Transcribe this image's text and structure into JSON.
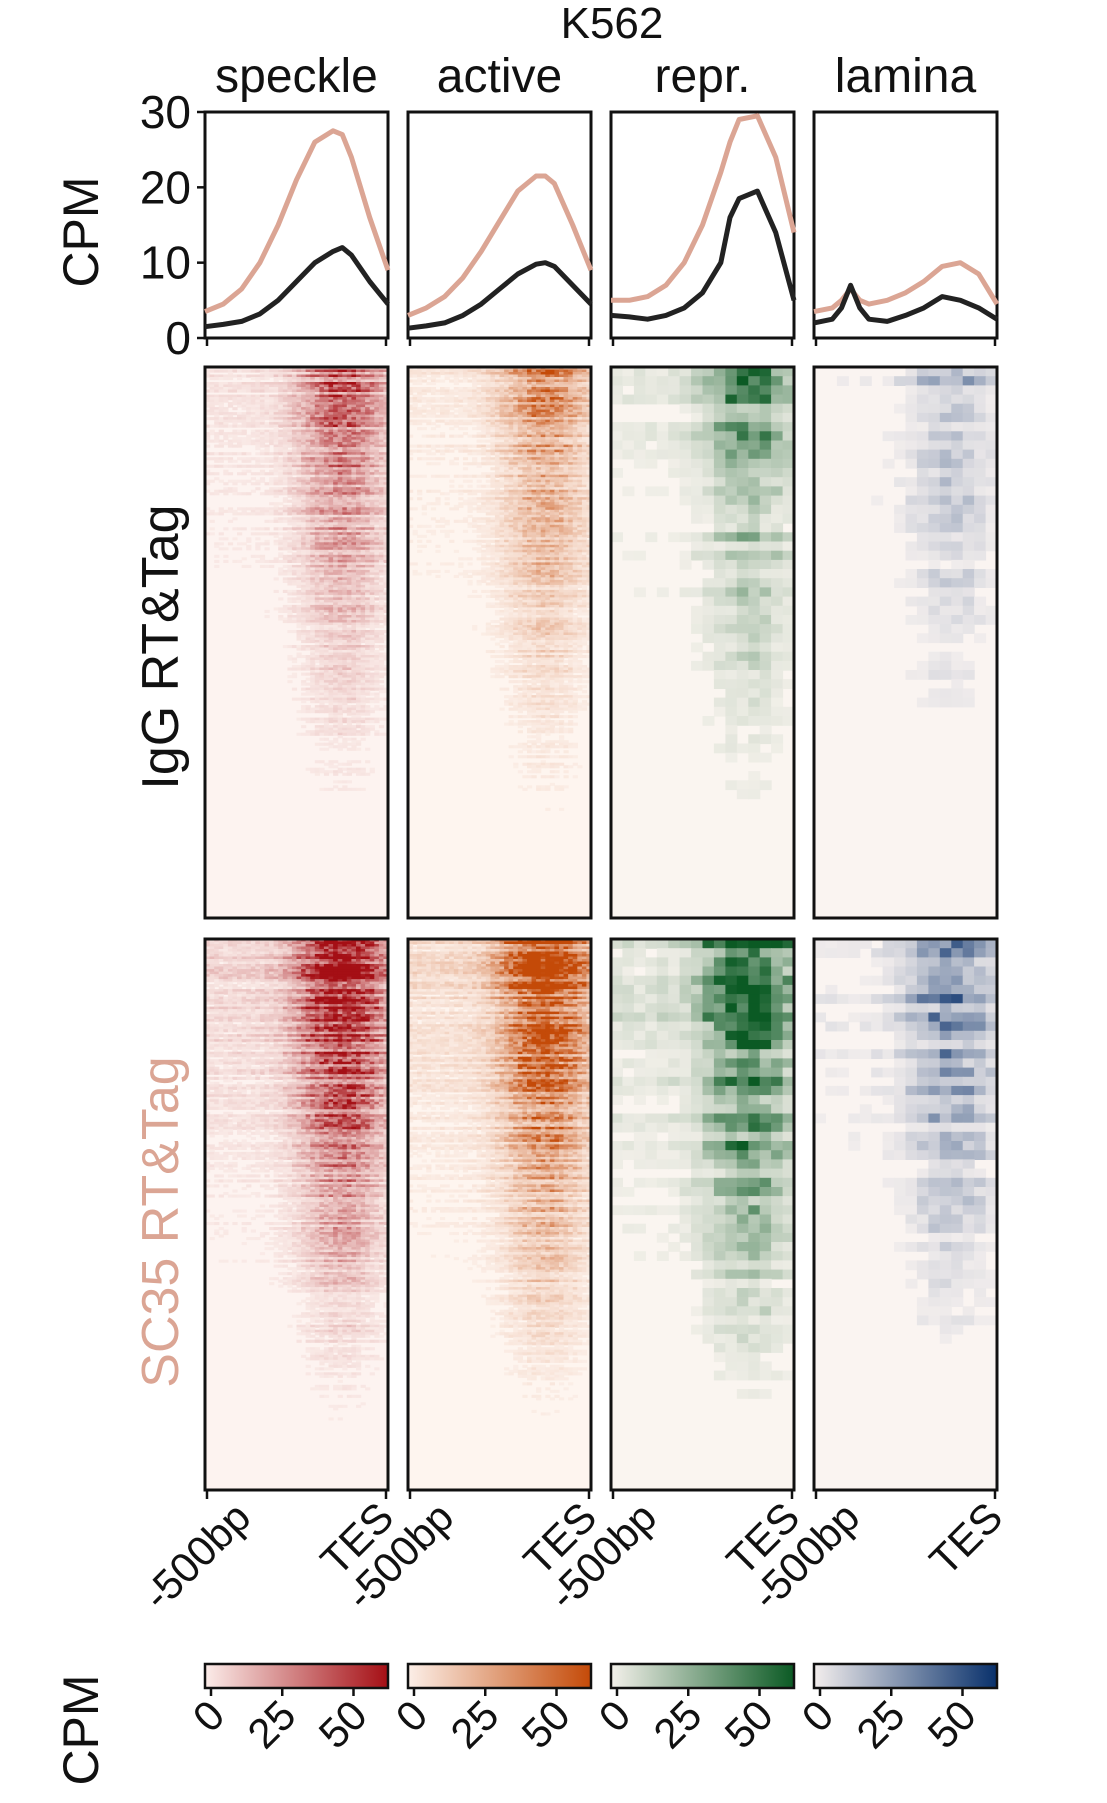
{
  "title": "K562",
  "columns": [
    "speckle",
    "active",
    "repr.",
    "lamina"
  ],
  "column_colors": [
    "#a50f15",
    "#c44a08",
    "#0b5a24",
    "#08306b"
  ],
  "line_colors": {
    "SC35": "#dba594",
    "IgG": "#222222"
  },
  "profile_ylabel": "CPM",
  "profile_yticks": [
    "30",
    "20",
    "10",
    "0"
  ],
  "heatmap_row_labels": {
    "igg": "IgG RT&Tag",
    "sc35": "SC35 RT&Tag"
  },
  "x_tick_labels": [
    "-500bp",
    "TES"
  ],
  "colorbar_label": "CPM",
  "colorbar_ticks": [
    "0",
    "25",
    "50"
  ],
  "chart_data": [
    {
      "type": "line",
      "column": "speckle",
      "ylabel": "CPM",
      "ylim": [
        0,
        30
      ],
      "x": [
        0,
        0.1,
        0.2,
        0.3,
        0.4,
        0.5,
        0.6,
        0.7,
        0.75,
        0.8,
        0.9,
        1.0
      ],
      "x_tick_labels": [
        "-500bp",
        "TES"
      ],
      "series": [
        {
          "name": "SC35 RT&Tag",
          "color": "#dba594",
          "values": [
            3.5,
            4.5,
            6.5,
            10,
            15,
            21,
            26,
            27.5,
            27,
            24,
            16,
            9
          ]
        },
        {
          "name": "IgG RT&Tag",
          "color": "#222222",
          "values": [
            1.5,
            1.8,
            2.2,
            3.2,
            5,
            7.5,
            10,
            11.5,
            12,
            11,
            7.5,
            4.5
          ]
        }
      ]
    },
    {
      "type": "line",
      "column": "active",
      "ylabel": "CPM",
      "ylim": [
        0,
        30
      ],
      "x": [
        0,
        0.1,
        0.2,
        0.3,
        0.4,
        0.5,
        0.6,
        0.7,
        0.75,
        0.8,
        0.9,
        1.0
      ],
      "x_tick_labels": [
        "-500bp",
        "TES"
      ],
      "series": [
        {
          "name": "SC35 RT&Tag",
          "color": "#dba594",
          "values": [
            3,
            4,
            5.5,
            8,
            11.5,
            15.5,
            19.5,
            21.5,
            21.5,
            20.5,
            15,
            9
          ]
        },
        {
          "name": "IgG RT&Tag",
          "color": "#222222",
          "values": [
            1.3,
            1.6,
            2,
            3,
            4.5,
            6.5,
            8.5,
            9.8,
            10,
            9.5,
            7,
            4.5
          ]
        }
      ]
    },
    {
      "type": "line",
      "column": "repr.",
      "ylabel": "CPM",
      "ylim": [
        0,
        30
      ],
      "x": [
        0,
        0.1,
        0.2,
        0.3,
        0.4,
        0.5,
        0.6,
        0.65,
        0.7,
        0.8,
        0.9,
        1.0
      ],
      "x_tick_labels": [
        "-500bp",
        "TES"
      ],
      "series": [
        {
          "name": "SC35 RT&Tag",
          "color": "#dba594",
          "values": [
            5,
            5,
            5.5,
            7,
            10,
            15,
            22,
            26,
            29,
            29.5,
            24,
            14
          ]
        },
        {
          "name": "IgG RT&Tag",
          "color": "#222222",
          "values": [
            3,
            2.8,
            2.5,
            3,
            4,
            6,
            10,
            16,
            18.5,
            19.5,
            14,
            5
          ]
        }
      ]
    },
    {
      "type": "line",
      "column": "lamina",
      "ylabel": "CPM",
      "ylim": [
        0,
        30
      ],
      "x": [
        0,
        0.1,
        0.15,
        0.2,
        0.25,
        0.3,
        0.4,
        0.5,
        0.6,
        0.7,
        0.8,
        0.9,
        1.0
      ],
      "x_tick_labels": [
        "-500bp",
        "TES"
      ],
      "series": [
        {
          "name": "SC35 RT&Tag",
          "color": "#dba594",
          "values": [
            3.5,
            4,
            5,
            6.5,
            5,
            4.5,
            5,
            6,
            7.5,
            9.5,
            10,
            8.5,
            4.5
          ]
        },
        {
          "name": "IgG RT&Tag",
          "color": "#222222",
          "values": [
            2,
            2.5,
            4,
            7,
            4,
            2.5,
            2.2,
            3,
            4,
            5.5,
            5,
            4,
            2.5
          ]
        }
      ]
    }
  ]
}
